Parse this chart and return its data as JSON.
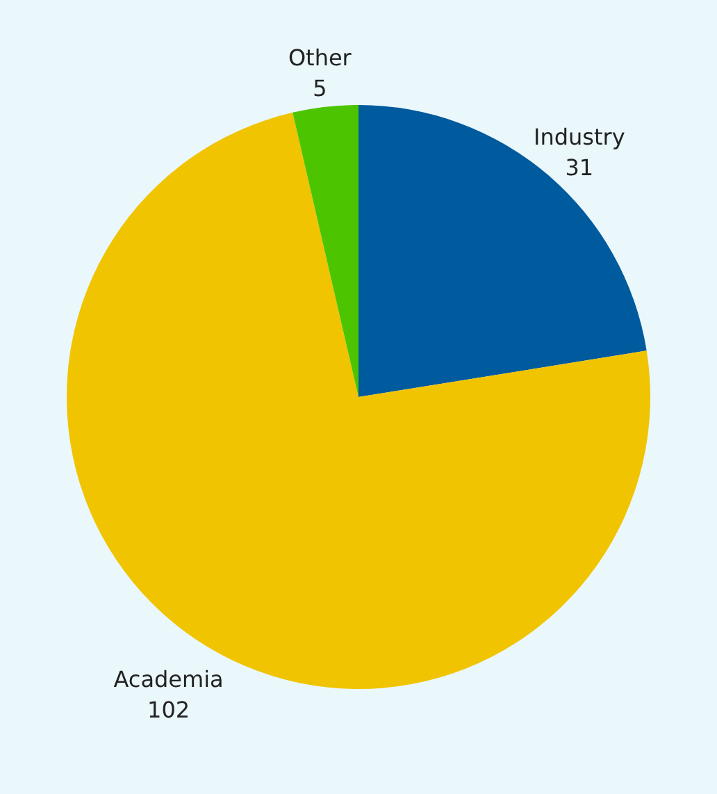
{
  "chart_data": {
    "type": "pie",
    "categories": [
      "Industry",
      "Academia",
      "Other"
    ],
    "values": [
      31,
      102,
      5
    ],
    "colors": [
      "#005a9e",
      "#f0c400",
      "#4cc400"
    ],
    "data_labels": true
  }
}
